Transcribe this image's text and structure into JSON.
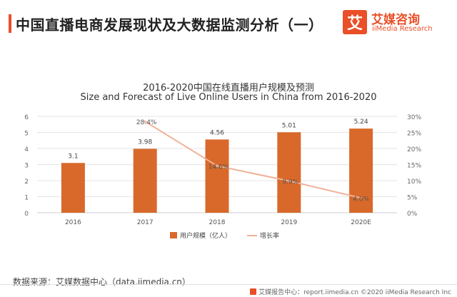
{
  "header": {
    "title": "中国直播电商发展现状及大数据监测分析（一）"
  },
  "logo": {
    "glyph": "艾",
    "name_cn": "艾媒咨询",
    "name_en": "iiMedia Research"
  },
  "chart_data": {
    "type": "bar+line",
    "title": "2016-2020中国在线直播用户规模及预测",
    "subtitle": "Size and Forecast of Live Online Users in China from 2016-2020",
    "categories": [
      "2016",
      "2017",
      "2018",
      "2019",
      "2020E"
    ],
    "series": [
      {
        "name": "用户规模（亿人）",
        "kind": "bar",
        "axis": "left",
        "values": [
          3.1,
          3.98,
          4.56,
          5.01,
          5.24
        ],
        "labels": [
          "3.1",
          "3.98",
          "4.56",
          "5.01",
          "5.24"
        ],
        "color": "#d9692a"
      },
      {
        "name": "增长率",
        "kind": "line",
        "axis": "right",
        "values": [
          null,
          28.4,
          14.6,
          9.9,
          4.6
        ],
        "labels": [
          "",
          "28.4%",
          "14.6%",
          "9.9%",
          "4.6%"
        ],
        "color": "#f0b096"
      }
    ],
    "y_left": {
      "min": 0,
      "max": 6,
      "ticks": [
        "0",
        "1",
        "2",
        "3",
        "4",
        "5",
        "6"
      ]
    },
    "y_right": {
      "min": 0,
      "max": 30,
      "ticks": [
        "0%",
        "5%",
        "10%",
        "15%",
        "20%",
        "25%",
        "30%"
      ]
    },
    "grid": true,
    "legend_position": "bottom"
  },
  "source": "数据来源：艾媒数据中心（data.iimedia.cn）",
  "footer": {
    "text": "艾媒报告中心：report.iimedia.cn ©2020 iiMedia Research Inc"
  },
  "colors": {
    "accent": "#e94f28",
    "bar": "#d9692a",
    "line": "#f0b096",
    "grid": "#e6e6e6"
  }
}
